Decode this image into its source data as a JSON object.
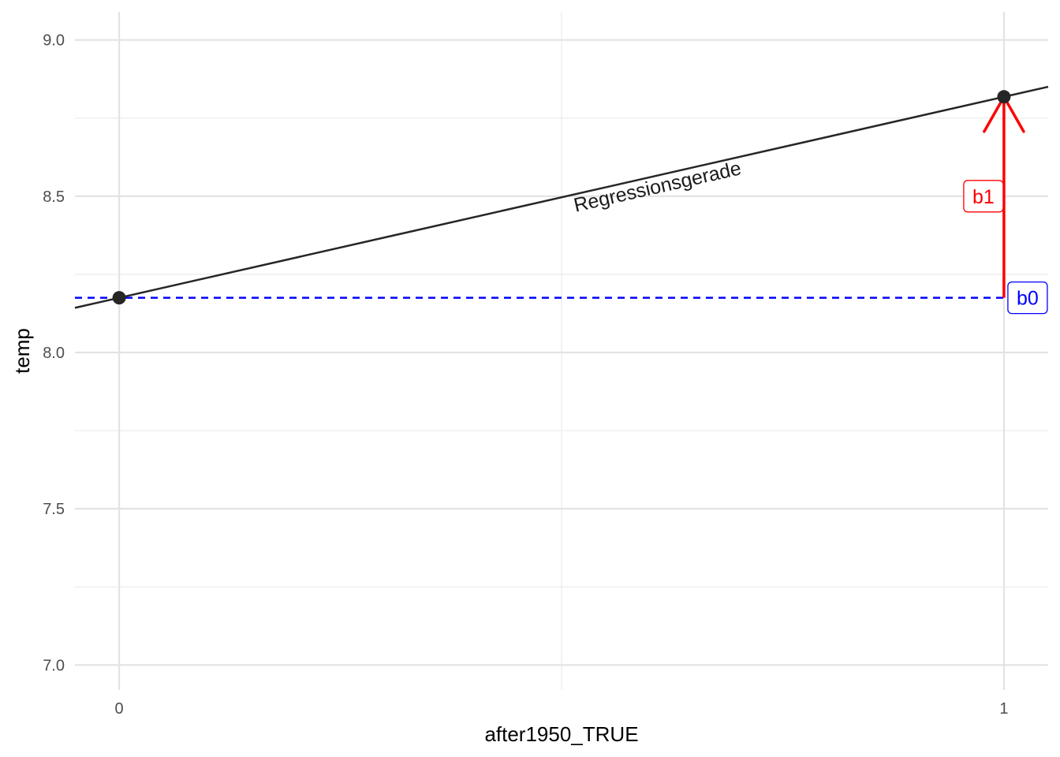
{
  "chart_data": {
    "type": "scatter",
    "title": "",
    "xlabel": "after1950_TRUE",
    "ylabel": "temp",
    "xlim": [
      -0.05,
      1.05
    ],
    "ylim": [
      6.92,
      9.09
    ],
    "grid": true,
    "x_ticks": [
      0,
      1
    ],
    "x_tick_labels": [
      "0",
      "1"
    ],
    "y_ticks": [
      7.0,
      7.5,
      8.0,
      8.5,
      9.0
    ],
    "y_tick_labels": [
      "7.0",
      "7.5",
      "8.0",
      "8.5",
      "9.0"
    ],
    "points": [
      {
        "x": 0,
        "y": 8.175
      },
      {
        "x": 1,
        "y": 8.818
      }
    ],
    "regression_line": {
      "intercept": 8.175,
      "slope": 0.643,
      "color": "#262626"
    },
    "annotations": [
      {
        "text": "Regressionsgerade",
        "x": 0.61,
        "y": 8.51
      }
    ],
    "b0": {
      "label": "b0",
      "y": 8.175,
      "color": "#0000ff",
      "style": "dashed"
    },
    "b1": {
      "label": "b1",
      "x": 1,
      "y_from": 8.175,
      "y_to": 8.818,
      "color": "#ff0000"
    }
  }
}
